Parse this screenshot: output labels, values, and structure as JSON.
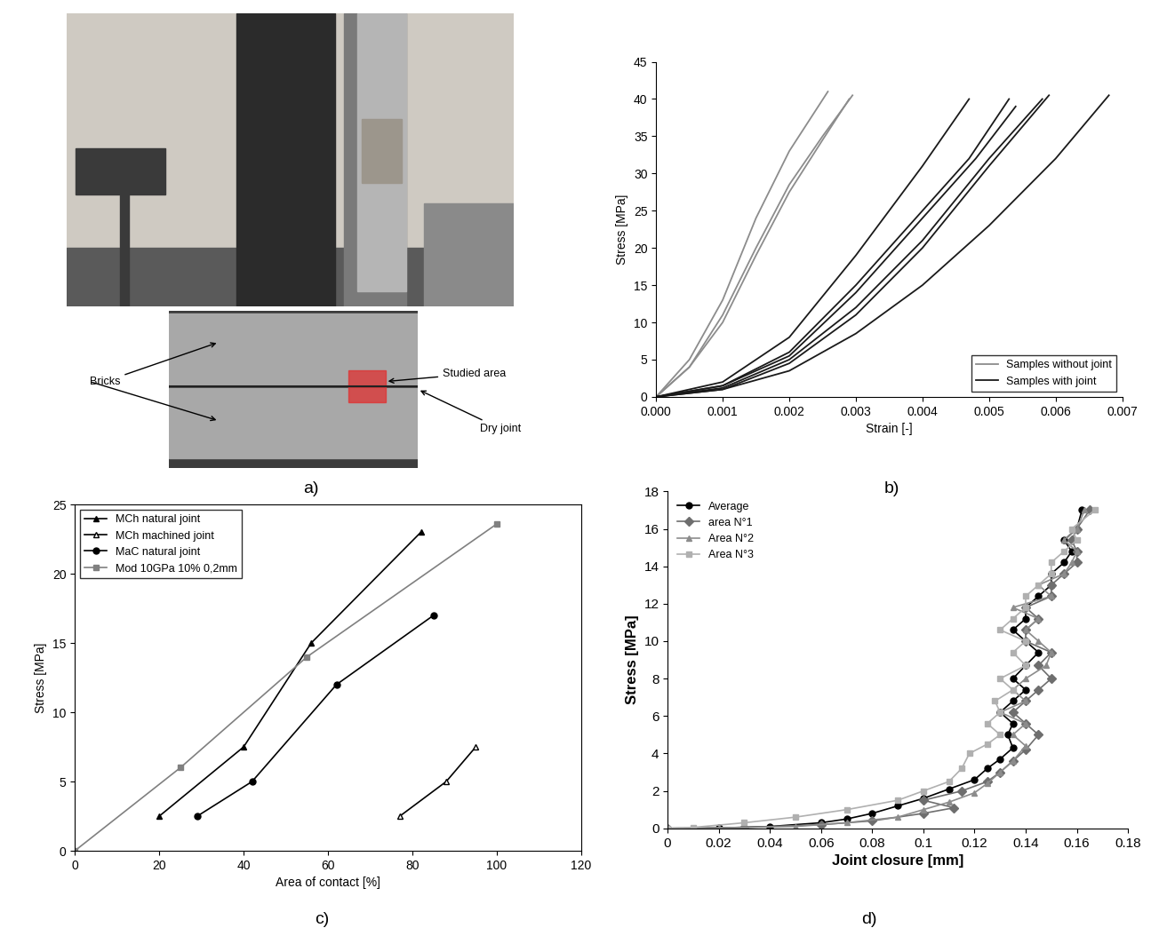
{
  "photo": {
    "caption": "a)",
    "labels": {
      "bricks": "Bricks",
      "studied_area": "Studied area",
      "dry_joint": "Dry joint"
    }
  },
  "chart_data": [
    {
      "caption": "b)",
      "type": "line",
      "x_label": "Strain [-]",
      "y_label": "Stress [MPa]",
      "xlim": [
        0,
        0.007
      ],
      "ylim": [
        0,
        45
      ],
      "xticks": [
        {
          "value": 0,
          "label": "0.000"
        },
        {
          "value": 0.001,
          "label": "0.001"
        },
        {
          "value": 0.002,
          "label": "0.002"
        },
        {
          "value": 0.003,
          "label": "0.003"
        },
        {
          "value": 0.004,
          "label": "0.004"
        },
        {
          "value": 0.005,
          "label": "0.005"
        },
        {
          "value": 0.006,
          "label": "0.006"
        },
        {
          "value": 0.007,
          "label": "0.007"
        }
      ],
      "yticks": [
        0,
        5,
        10,
        15,
        20,
        25,
        30,
        35,
        40,
        45
      ],
      "legend": "lower right",
      "grid": false,
      "series": [
        {
          "name": "Samples without joint",
          "color": "#8c8c8c",
          "curves": [
            {
              "x": [
                0,
                0.0005,
                0.001,
                0.0015,
                0.002,
                0.00258
              ],
              "values": [
                0,
                5,
                13,
                24,
                33,
                41
              ]
            },
            {
              "x": [
                0,
                0.0005,
                0.001,
                0.0015,
                0.002,
                0.0025,
                0.00295
              ],
              "values": [
                0,
                4,
                11,
                20,
                28.5,
                35,
                40.5
              ]
            },
            {
              "x": [
                0,
                0.0005,
                0.001,
                0.0015,
                0.002,
                0.0025,
                0.0029
              ],
              "values": [
                0,
                4,
                10,
                19,
                27.5,
                34.5,
                40
              ]
            }
          ]
        },
        {
          "name": "Samples with joint",
          "color": "#1a1a1a",
          "curves": [
            {
              "x": [
                0,
                0.001,
                0.002,
                0.003,
                0.004,
                0.0047
              ],
              "values": [
                0,
                2,
                8,
                19,
                31,
                40
              ]
            },
            {
              "x": [
                0,
                0.001,
                0.002,
                0.003,
                0.004,
                0.0047,
                0.0053
              ],
              "values": [
                0,
                1.5,
                6,
                15,
                25,
                32,
                40
              ]
            },
            {
              "x": [
                0,
                0.001,
                0.002,
                0.003,
                0.004,
                0.0048,
                0.0054
              ],
              "values": [
                0,
                1.5,
                5.5,
                14,
                24,
                32,
                39
              ]
            },
            {
              "x": [
                0,
                0.001,
                0.002,
                0.003,
                0.004,
                0.005,
                0.0058
              ],
              "values": [
                0,
                1.2,
                5,
                12,
                21,
                32,
                40
              ]
            },
            {
              "x": [
                0,
                0.001,
                0.002,
                0.003,
                0.004,
                0.005,
                0.0059
              ],
              "values": [
                0,
                1,
                4.5,
                11,
                20,
                31,
                40.5
              ]
            },
            {
              "x": [
                0,
                0.001,
                0.002,
                0.003,
                0.004,
                0.005,
                0.006,
                0.0068
              ],
              "values": [
                0,
                1,
                3.5,
                8.5,
                15,
                23,
                32,
                40.5
              ]
            }
          ]
        }
      ]
    },
    {
      "caption": "c)",
      "type": "line",
      "x_label": "Area of contact [%]",
      "y_label": "Stress [MPa]",
      "xlim": [
        0,
        120
      ],
      "ylim": [
        0,
        25
      ],
      "xticks": [
        0,
        20,
        40,
        60,
        80,
        100,
        120
      ],
      "yticks": [
        0,
        5,
        10,
        15,
        20,
        25
      ],
      "legend": "upper left",
      "grid": false,
      "series": [
        {
          "name": "MCh natural joint",
          "color": "#000000",
          "marker": "triangle",
          "x": [
            20,
            40,
            56,
            82
          ],
          "values": [
            2.5,
            7.5,
            15,
            23
          ]
        },
        {
          "name": "MCh machined joint",
          "color": "#000000",
          "marker": "open_triangle",
          "x": [
            77,
            88,
            95
          ],
          "values": [
            2.5,
            5,
            7.5
          ]
        },
        {
          "name": "MaC natural joint",
          "color": "#000000",
          "marker": "circle",
          "x": [
            29,
            42,
            62,
            85
          ],
          "values": [
            2.5,
            5,
            12,
            17
          ]
        },
        {
          "name": "Mod 10GPa 10% 0,2mm",
          "color": "#808080",
          "marker": "square",
          "x": [
            0,
            25,
            55,
            100
          ],
          "values": [
            0,
            6,
            14,
            23.6
          ]
        }
      ]
    },
    {
      "caption": "d)",
      "type": "line",
      "x_label": "Joint closure [mm]",
      "y_label": "Stress [MPa]",
      "xlim": [
        0,
        0.18
      ],
      "ylim": [
        0,
        18
      ],
      "xticks": [
        0,
        0.02,
        0.04,
        0.06,
        0.08,
        0.1,
        0.12,
        0.14,
        0.16,
        0.18
      ],
      "yticks": [
        0,
        2,
        4,
        6,
        8,
        10,
        12,
        14,
        16,
        18
      ],
      "legend": "upper left",
      "grid": false,
      "series": [
        {
          "name": "Average",
          "color": "#000000",
          "marker": "circle",
          "x": [
            0,
            0.02,
            0.04,
            0.06,
            0.07,
            0.08,
            0.09,
            0.1,
            0.11,
            0.12,
            0.125,
            0.13,
            0.135,
            0.133,
            0.135,
            0.13,
            0.135,
            0.14,
            0.135,
            0.14,
            0.145,
            0.14,
            0.135,
            0.14,
            0.14,
            0.145,
            0.15,
            0.15,
            0.155,
            0.158,
            0.155,
            0.16,
            0.162
          ],
          "values": [
            0,
            0.02,
            0.1,
            0.3,
            0.5,
            0.8,
            1.2,
            1.6,
            2.1,
            2.6,
            3.2,
            3.7,
            4.3,
            5,
            5.6,
            6.2,
            6.8,
            7.4,
            8,
            8.7,
            9.4,
            10,
            10.6,
            11.2,
            11.8,
            12.4,
            13,
            13.6,
            14.2,
            14.8,
            15.4,
            16,
            17
          ]
        },
        {
          "name": "area N°1",
          "color": "#6e6e6e",
          "marker": "diamond",
          "x": [
            0,
            0.03,
            0.06,
            0.08,
            0.1,
            0.112,
            0.1,
            0.115,
            0.125,
            0.13,
            0.135,
            0.14,
            0.145,
            0.14,
            0.135,
            0.14,
            0.145,
            0.15,
            0.145,
            0.15,
            0.14,
            0.14,
            0.145,
            0.14,
            0.15,
            0.15,
            0.155,
            0.16,
            0.16,
            0.158,
            0.16,
            0.165
          ],
          "values": [
            0,
            0.05,
            0.2,
            0.4,
            0.8,
            1.1,
            1.5,
            2,
            2.5,
            3,
            3.6,
            4.2,
            5,
            5.6,
            6.2,
            6.8,
            7.4,
            8,
            8.7,
            9.4,
            10,
            10.6,
            11.2,
            11.8,
            12.4,
            13,
            13.6,
            14.2,
            14.8,
            15.4,
            16,
            17
          ]
        },
        {
          "name": "Area N°2",
          "color": "#8c8c8c",
          "marker": "triangle",
          "x": [
            0,
            0.02,
            0.05,
            0.07,
            0.09,
            0.1,
            0.11,
            0.12,
            0.125,
            0.13,
            0.135,
            0.14,
            0.135,
            0.14,
            0.13,
            0.14,
            0.135,
            0.14,
            0.148,
            0.15,
            0.145,
            0.14,
            0.145,
            0.135,
            0.15,
            0.145,
            0.155,
            0.158,
            0.16,
            0.155,
            0.16,
            0.163
          ],
          "values": [
            0,
            0.02,
            0.1,
            0.3,
            0.6,
            1,
            1.4,
            1.9,
            2.4,
            3,
            3.6,
            4.4,
            5,
            5.6,
            6.2,
            6.8,
            7.4,
            8,
            8.7,
            9.4,
            10,
            10.6,
            11.2,
            11.8,
            12.4,
            13,
            13.6,
            14.2,
            14.8,
            15.4,
            16,
            17
          ]
        },
        {
          "name": "Area N°3",
          "color": "#b0b0b0",
          "marker": "square",
          "x": [
            0,
            0.01,
            0.03,
            0.05,
            0.07,
            0.09,
            0.1,
            0.11,
            0.115,
            0.118,
            0.125,
            0.13,
            0.125,
            0.13,
            0.128,
            0.135,
            0.13,
            0.14,
            0.135,
            0.14,
            0.13,
            0.135,
            0.14,
            0.14,
            0.145,
            0.15,
            0.15,
            0.155,
            0.16,
            0.158,
            0.167
          ],
          "values": [
            0,
            0.05,
            0.3,
            0.6,
            1,
            1.5,
            2,
            2.5,
            3.2,
            4,
            4.5,
            5,
            5.6,
            6.2,
            6.8,
            7.4,
            8,
            8.7,
            9.4,
            10,
            10.6,
            11.2,
            11.8,
            12.4,
            13,
            13.6,
            14.2,
            14.8,
            15.4,
            16,
            17
          ]
        }
      ]
    }
  ]
}
